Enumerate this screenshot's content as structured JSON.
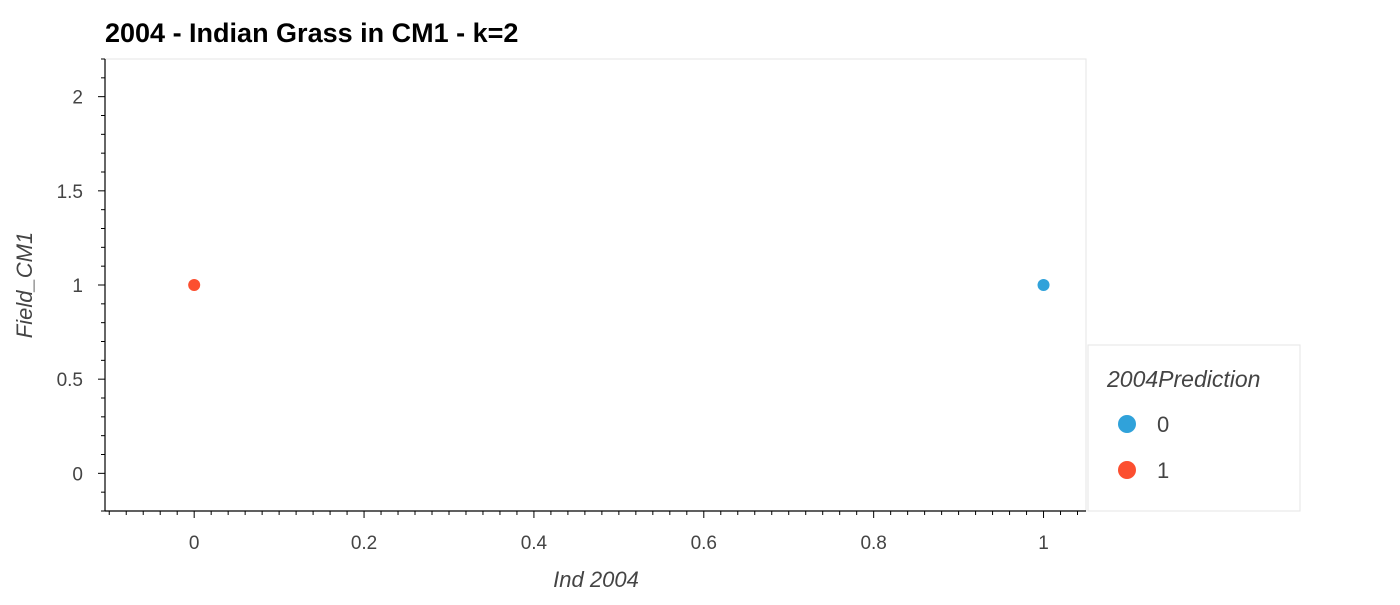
{
  "chart_data": {
    "type": "scatter",
    "title": "2004 - Indian Grass in CM1 - k=2",
    "xlabel": "Ind 2004",
    "ylabel": "Field_CM1",
    "xlim": [
      -0.105,
      1.05
    ],
    "ylim": [
      -0.2,
      2.2
    ],
    "x_ticks": [
      0,
      0.2,
      0.4,
      0.6,
      0.8,
      1
    ],
    "x_tick_labels": [
      "0",
      "0.2",
      "0.4",
      "0.6",
      "0.8",
      "1"
    ],
    "y_ticks": [
      0,
      0.5,
      1,
      1.5,
      2
    ],
    "y_tick_labels": [
      "0",
      "0.5",
      "1",
      "1.5",
      "2"
    ],
    "grid": false,
    "legend": {
      "title": "2004Prediction",
      "placement": "right",
      "entries": [
        {
          "label": "0",
          "color": "#30a2da"
        },
        {
          "label": "1",
          "color": "#fc4f30"
        }
      ]
    },
    "points": [
      {
        "x": 0,
        "y": 1,
        "series": "1",
        "color": "#fc4f30"
      },
      {
        "x": 1,
        "y": 1,
        "series": "0",
        "color": "#30a2da"
      }
    ]
  }
}
